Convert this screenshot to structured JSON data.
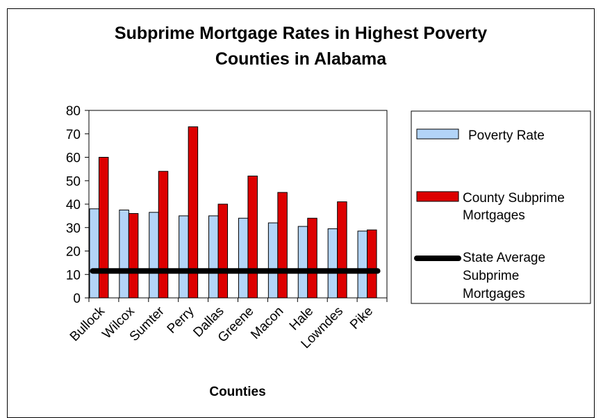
{
  "chart_data": {
    "type": "bar",
    "title_line1": "Subprime Mortgage Rates in Highest Poverty",
    "title_line2": "Counties in Alabama",
    "xlabel": "Counties",
    "ylabel": "",
    "ylim": [
      0,
      80
    ],
    "yticks": [
      "0",
      "10",
      "20",
      "30",
      "40",
      "50",
      "60",
      "70",
      "80"
    ],
    "categories": [
      "Bullock",
      "Wilcox",
      "Sumter",
      "Perry",
      "Dallas",
      "Greene",
      "Macon",
      "Hale",
      "Lowndes",
      "Pike"
    ],
    "series": [
      {
        "name": "Poverty Rate",
        "type": "bar",
        "color": "#b3d4f7",
        "values": [
          38,
          37.5,
          36.5,
          35,
          35,
          34,
          32,
          30.5,
          29.5,
          28.5
        ]
      },
      {
        "name": "County Subprime Mortgages",
        "type": "bar",
        "color": "#dd0000",
        "values": [
          60,
          36,
          54,
          73,
          40,
          52,
          45,
          34,
          41,
          29
        ]
      },
      {
        "name": "State Average Subprime Mortgages",
        "type": "line",
        "color": "#000000",
        "values": [
          11.5,
          11.5,
          11.5,
          11.5,
          11.5,
          11.5,
          11.5,
          11.5,
          11.5,
          11.5
        ]
      }
    ],
    "legend": {
      "placement": "right",
      "line1_label": "Poverty Rate",
      "line2_label_a": "County Subprime",
      "line2_label_b": "Mortgages",
      "line3_label_a": "State Average",
      "line3_label_b": "Subprime",
      "line3_label_c": "Mortgages"
    },
    "grid": false
  }
}
